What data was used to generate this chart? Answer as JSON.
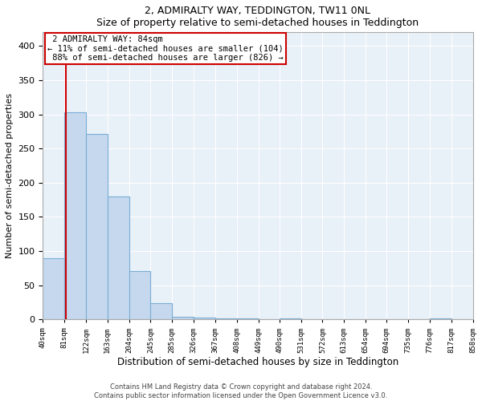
{
  "title": "2, ADMIRALTY WAY, TEDDINGTON, TW11 0NL",
  "subtitle": "Size of property relative to semi-detached houses in Teddington",
  "xlabel": "Distribution of semi-detached houses by size in Teddington",
  "ylabel": "Number of semi-detached properties",
  "footer_line1": "Contains HM Land Registry data © Crown copyright and database right 2024.",
  "footer_line2": "Contains public sector information licensed under the Open Government Licence v3.0.",
  "property_size": 84,
  "property_label": "2 ADMIRALTY WAY: 84sqm",
  "pct_smaller": 11,
  "count_smaller": 104,
  "pct_larger": 88,
  "count_larger": 826,
  "bin_edges": [
    40,
    81,
    122,
    163,
    204,
    245,
    286,
    327,
    368,
    409,
    450,
    491,
    531,
    572,
    613,
    654,
    694,
    735,
    776,
    817,
    858
  ],
  "tick_labels": [
    "40sqm",
    "81sqm",
    "122sqm",
    "163sqm",
    "204sqm",
    "245sqm",
    "285sqm",
    "326sqm",
    "367sqm",
    "408sqm",
    "449sqm",
    "490sqm",
    "531sqm",
    "572sqm",
    "613sqm",
    "654sqm",
    "694sqm",
    "735sqm",
    "776sqm",
    "817sqm",
    "858sqm"
  ],
  "counts": [
    90,
    303,
    271,
    180,
    71,
    24,
    4,
    3,
    2,
    1,
    0,
    1,
    0,
    0,
    0,
    0,
    0,
    0,
    1,
    0
  ],
  "bar_color": "#c5d8ee",
  "bar_edge_color": "#7aaed6",
  "plot_bg_color": "#e8f0f8",
  "vline_color": "#cc0000",
  "annotation_box_color": "#cc0000",
  "grid_color": "#ffffff",
  "ylim": [
    0,
    420
  ],
  "yticks": [
    0,
    50,
    100,
    150,
    200,
    250,
    300,
    350,
    400
  ],
  "background_color": "#ffffff"
}
